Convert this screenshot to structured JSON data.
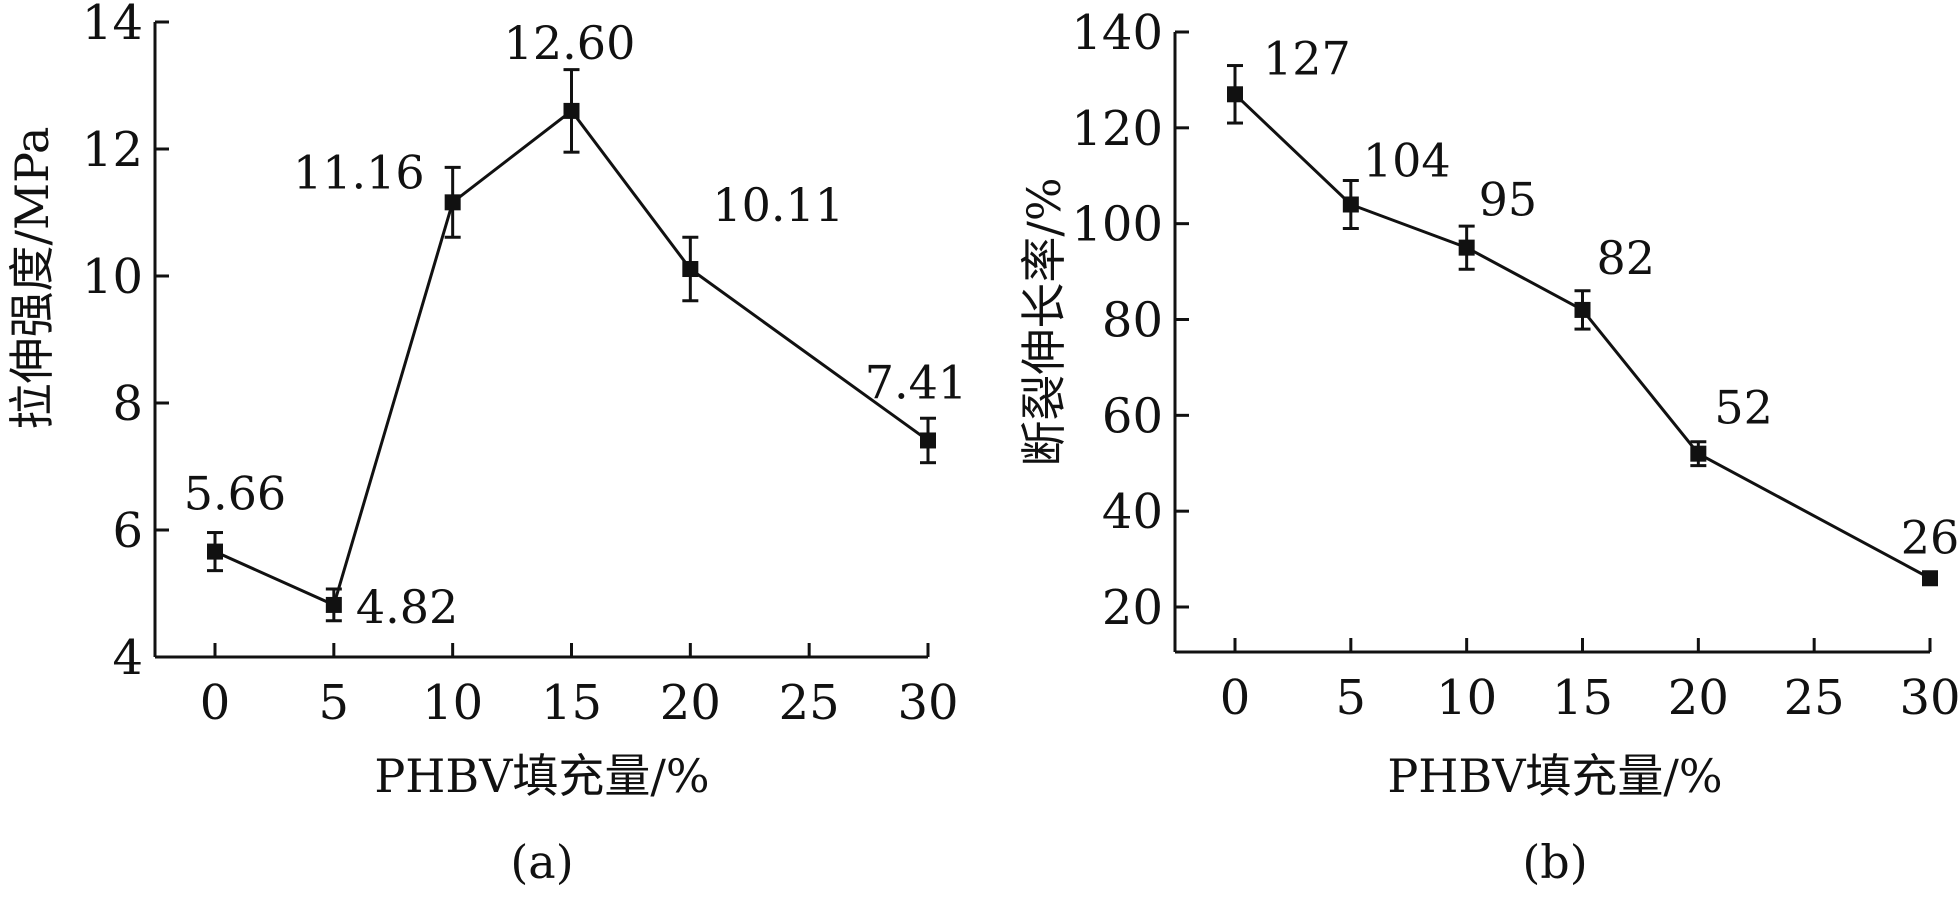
{
  "chart_data": [
    {
      "type": "line",
      "caption": "(a)",
      "xlabel": "PHBV填充量/%",
      "ylabel": "拉伸强度/MPa",
      "xlim": [
        0,
        30
      ],
      "ylim": [
        4,
        14
      ],
      "x_ticks": [
        0,
        5,
        10,
        15,
        20,
        25,
        30
      ],
      "y_ticks": [
        4,
        6,
        8,
        10,
        12,
        14
      ],
      "x_tick_labels": [
        "0",
        "5",
        "10",
        "15",
        "20",
        "25",
        "30"
      ],
      "y_tick_labels": [
        "4",
        "6",
        "8",
        "10",
        "12",
        "14"
      ],
      "series": [
        {
          "x": [
            0,
            5,
            10,
            15,
            20,
            30
          ],
          "values": [
            5.66,
            4.82,
            11.16,
            12.6,
            10.11,
            7.41
          ],
          "error": [
            0.3,
            0.25,
            0.55,
            0.65,
            0.5,
            0.35
          ],
          "labels": [
            "5.66",
            "4.82",
            "11.16",
            "12.60",
            "10.11",
            "7.41"
          ]
        }
      ],
      "grid": false
    },
    {
      "type": "line",
      "caption": "(b)",
      "xlabel": "PHBV填充量/%",
      "ylabel": "断裂伸长率/%",
      "xlim": [
        0,
        30
      ],
      "ylim": [
        10,
        140
      ],
      "x_ticks": [
        0,
        5,
        10,
        15,
        20,
        25,
        30
      ],
      "y_ticks": [
        20,
        40,
        60,
        80,
        100,
        120,
        140
      ],
      "x_tick_labels": [
        "0",
        "5",
        "10",
        "15",
        "20",
        "25",
        "30"
      ],
      "y_tick_labels": [
        "20",
        "40",
        "60",
        "80",
        "100",
        "120",
        "140"
      ],
      "series": [
        {
          "x": [
            0,
            5,
            10,
            15,
            20,
            30
          ],
          "values": [
            127,
            104,
            95,
            82,
            52,
            26
          ],
          "error": [
            6,
            5,
            4.5,
            4,
            2.5,
            0
          ],
          "labels": [
            "127",
            "104",
            "95",
            "82",
            "52",
            "26"
          ]
        }
      ],
      "grid": false
    }
  ]
}
